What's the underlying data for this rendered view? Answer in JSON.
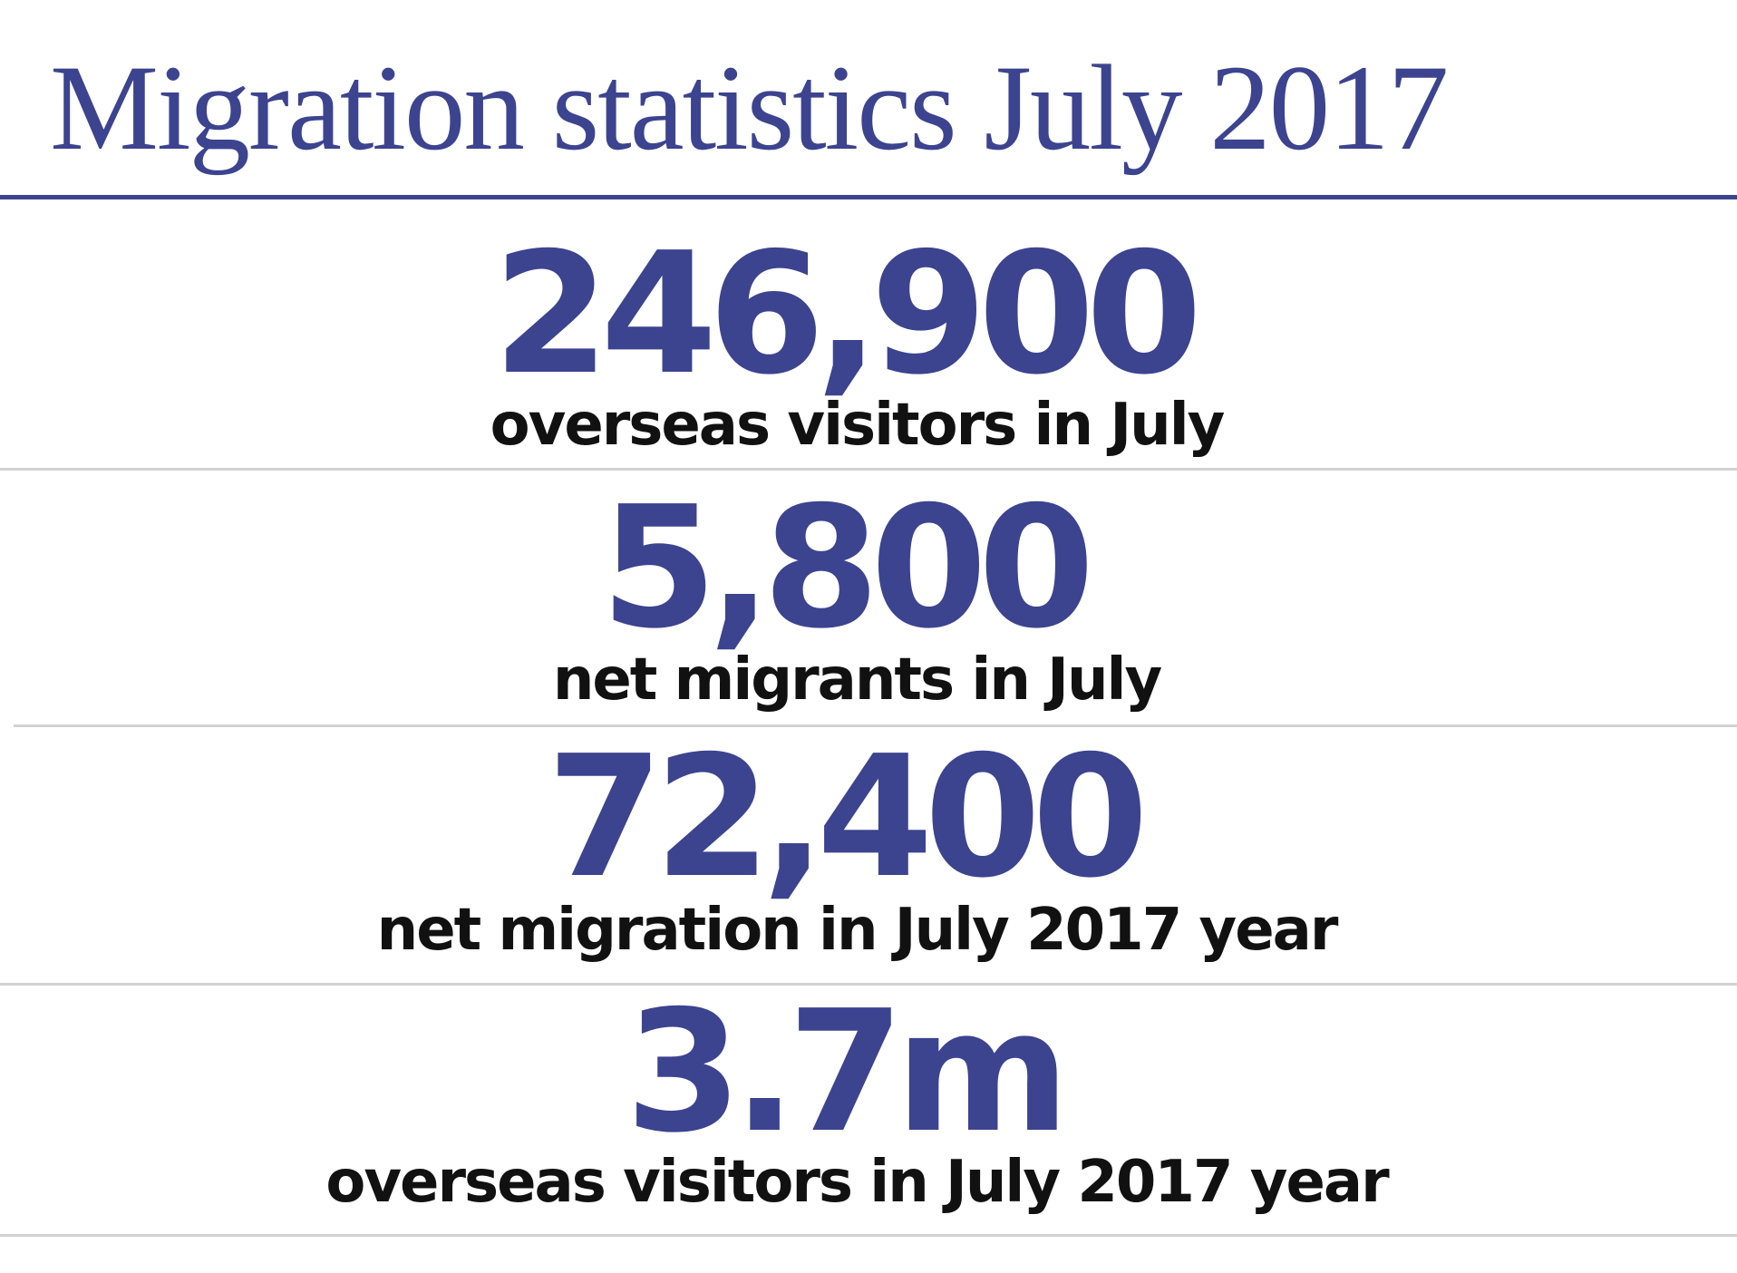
{
  "title": "Migration statistics July 2017",
  "colors": {
    "accent": "#3c438f",
    "label": "#111111",
    "divider": "#d2d2d2"
  },
  "stats": [
    {
      "value": "246,900",
      "label": "overseas visitors in July"
    },
    {
      "value": "5,800",
      "label": "net migrants in July"
    },
    {
      "value": "72,400",
      "label": "net migration in July 2017 year"
    },
    {
      "value": "3.7m",
      "label": "overseas visitors in July 2017 year"
    }
  ]
}
